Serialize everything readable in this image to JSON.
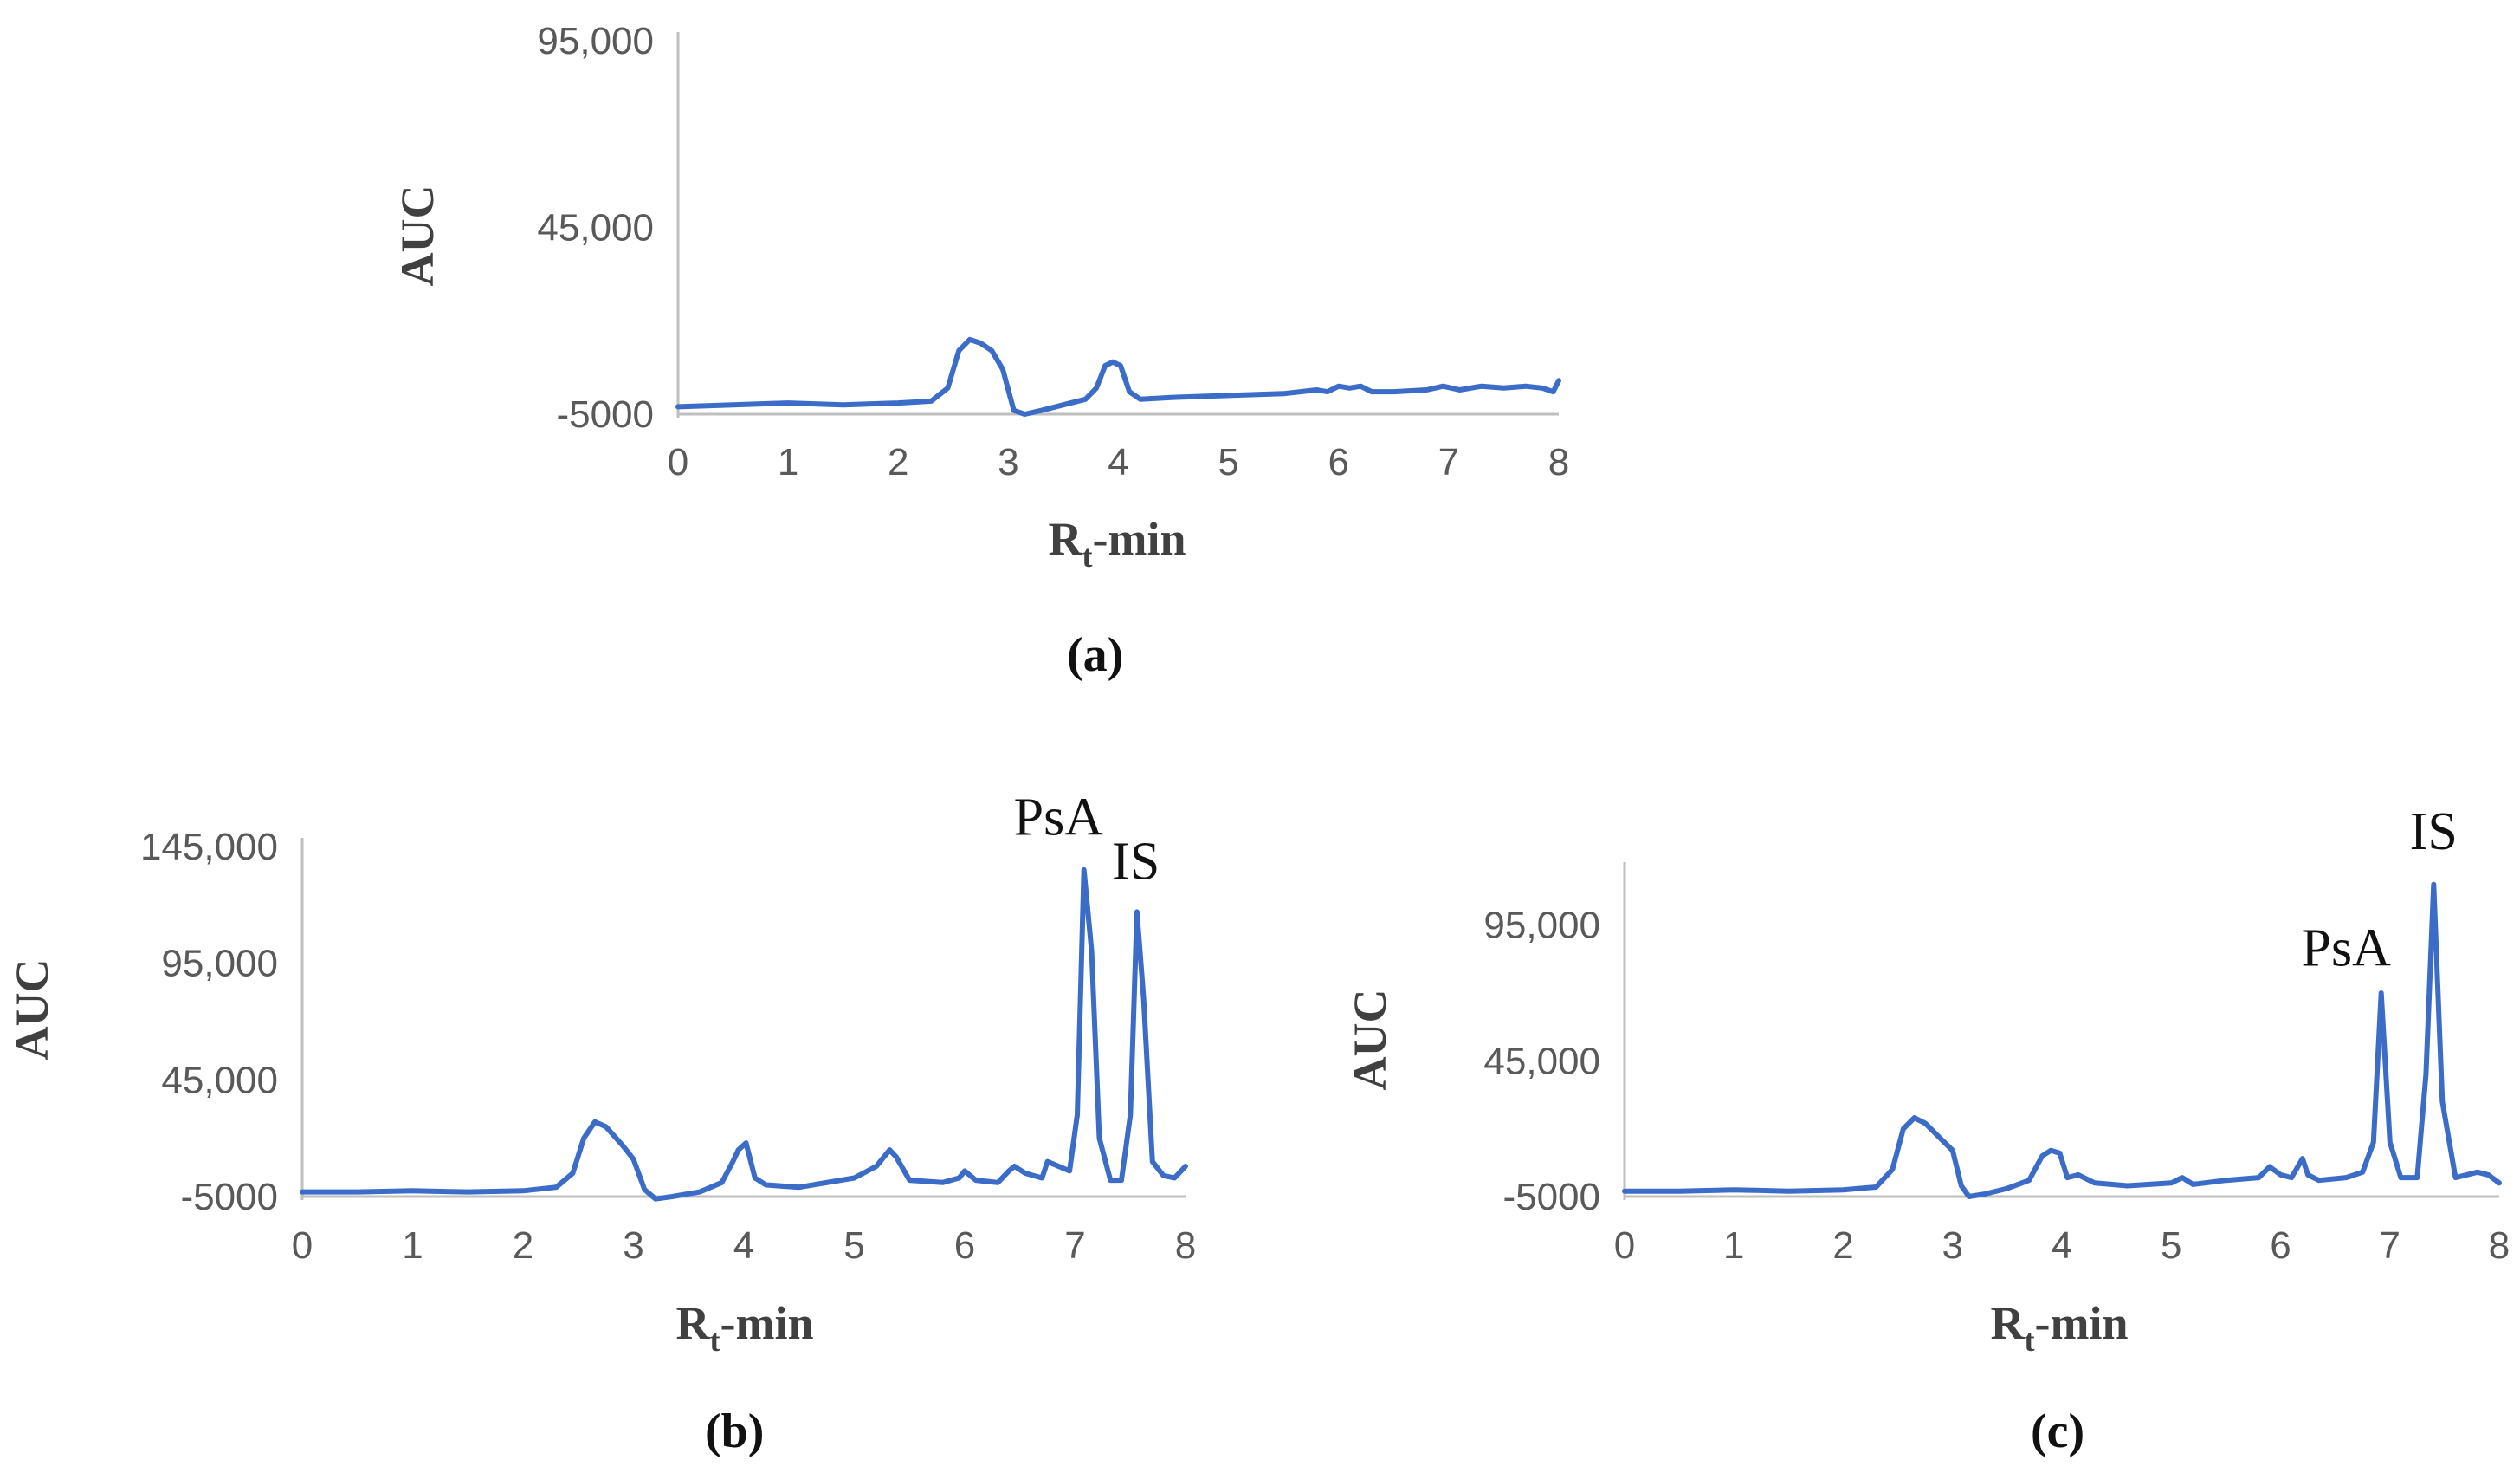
{
  "colors": {
    "line": "#3a6cc8",
    "axis": "#bfbfbf",
    "tick_text": "#595959"
  },
  "chart_data": [
    {
      "type": "line",
      "caption": "(a)",
      "xlabel_main": "R",
      "xlabel_sub": "t",
      "xlabel_rest": "-min",
      "ylabel": "AUC",
      "xlim": [
        0,
        8
      ],
      "ylim": [
        -5000,
        95000
      ],
      "x_ticks": [
        "0",
        "1",
        "2",
        "3",
        "4",
        "5",
        "6",
        "7",
        "8"
      ],
      "y_ticks": [
        {
          "value": 95000,
          "label": "95,000"
        },
        {
          "value": 45000,
          "label": "45,000"
        },
        {
          "value": -5000,
          "label": "-5000"
        }
      ],
      "annotations": [],
      "series": [
        {
          "x": [
            0,
            0.5,
            1,
            1.5,
            2,
            2.3,
            2.45,
            2.55,
            2.65,
            2.75,
            2.85,
            2.95,
            3.05,
            3.15,
            3.3,
            3.5,
            3.7,
            3.8,
            3.88,
            3.95,
            4.02,
            4.1,
            4.2,
            4.5,
            5,
            5.5,
            5.8,
            5.9,
            6.0,
            6.1,
            6.2,
            6.3,
            6.5,
            6.8,
            6.95,
            7.1,
            7.3,
            7.5,
            7.7,
            7.85,
            7.95,
            8.0
          ],
          "y": [
            -3000,
            -2500,
            -2000,
            -2500,
            -2000,
            -1500,
            2000,
            12000,
            15000,
            14000,
            12000,
            7000,
            -4000,
            -5000,
            -4000,
            -2500,
            -1000,
            2000,
            8000,
            9000,
            8000,
            1000,
            -1000,
            -500,
            0,
            500,
            1500,
            1000,
            2500,
            2000,
            2500,
            1000,
            1000,
            1500,
            2500,
            1500,
            2500,
            2000,
            2500,
            2000,
            1000,
            4000
          ]
        }
      ]
    },
    {
      "type": "line",
      "caption": "(b)",
      "xlabel_main": "R",
      "xlabel_sub": "t",
      "xlabel_rest": "-min",
      "ylabel": "AUC",
      "xlim": [
        0,
        8
      ],
      "ylim": [
        -5000,
        145000
      ],
      "x_ticks": [
        "0",
        "1",
        "2",
        "3",
        "4",
        "5",
        "6",
        "7",
        "8"
      ],
      "y_ticks": [
        {
          "value": 145000,
          "label": "145,000"
        },
        {
          "value": 95000,
          "label": "95,000"
        },
        {
          "value": 45000,
          "label": "45,000"
        },
        {
          "value": -5000,
          "label": "-5000"
        }
      ],
      "annotations": [
        {
          "label": "PsA",
          "x": 6.85,
          "y": 150000
        },
        {
          "label": "IS",
          "x": 7.55,
          "y": 131000
        }
      ],
      "series": [
        {
          "x": [
            0,
            0.5,
            1,
            1.5,
            2,
            2.3,
            2.45,
            2.55,
            2.65,
            2.75,
            2.9,
            3.0,
            3.1,
            3.2,
            3.35,
            3.6,
            3.8,
            3.9,
            3.95,
            4.02,
            4.1,
            4.2,
            4.5,
            5.0,
            5.2,
            5.32,
            5.38,
            5.5,
            5.8,
            5.95,
            6.0,
            6.1,
            6.3,
            6.4,
            6.45,
            6.55,
            6.7,
            6.75,
            6.85,
            6.95,
            7.02,
            7.08,
            7.15,
            7.22,
            7.32,
            7.42,
            7.5,
            7.56,
            7.62,
            7.7,
            7.8,
            7.9,
            8.0
          ],
          "y": [
            -3000,
            -3000,
            -2500,
            -3000,
            -2500,
            -1000,
            5000,
            20000,
            27000,
            25000,
            17000,
            11000,
            -2000,
            -6000,
            -5000,
            -3000,
            1000,
            10000,
            15000,
            18000,
            3000,
            0,
            -1000,
            3000,
            8000,
            15000,
            12000,
            2000,
            1000,
            3000,
            6000,
            2000,
            1000,
            6000,
            8000,
            5000,
            3000,
            10000,
            8000,
            6000,
            30000,
            135000,
            100000,
            20000,
            2000,
            2000,
            30000,
            117000,
            80000,
            10000,
            4000,
            3000,
            8000
          ]
        }
      ]
    },
    {
      "type": "line",
      "caption": "(c)",
      "xlabel_main": "R",
      "xlabel_sub": "t",
      "xlabel_rest": "-min",
      "ylabel": "AUC",
      "xlim": [
        0,
        8
      ],
      "ylim": [
        -5000,
        115000
      ],
      "x_ticks": [
        "0",
        "1",
        "2",
        "3",
        "4",
        "5",
        "6",
        "7",
        "8"
      ],
      "y_ticks": [
        {
          "value": 95000,
          "label": "95,000"
        },
        {
          "value": 45000,
          "label": "45,000"
        },
        {
          "value": -5000,
          "label": "-5000"
        }
      ],
      "annotations": [
        {
          "label": "PsA",
          "x": 6.6,
          "y": 80000
        },
        {
          "label": "IS",
          "x": 7.4,
          "y": 123000
        }
      ],
      "series": [
        {
          "x": [
            0,
            0.5,
            1,
            1.5,
            2,
            2.3,
            2.45,
            2.55,
            2.65,
            2.75,
            2.9,
            3.0,
            3.08,
            3.15,
            3.3,
            3.5,
            3.7,
            3.82,
            3.9,
            3.98,
            4.05,
            4.15,
            4.3,
            4.6,
            5.0,
            5.1,
            5.2,
            5.5,
            5.8,
            5.9,
            6.0,
            6.1,
            6.2,
            6.25,
            6.35,
            6.6,
            6.75,
            6.85,
            6.92,
            7.0,
            7.1,
            7.25,
            7.33,
            7.4,
            7.48,
            7.6,
            7.8,
            7.9,
            8.0
          ],
          "y": [
            -3000,
            -3000,
            -2500,
            -3000,
            -2500,
            -1500,
            5000,
            20000,
            24000,
            22000,
            16000,
            12000,
            -1000,
            -5000,
            -4000,
            -2000,
            1000,
            10000,
            12000,
            11000,
            2000,
            3000,
            0,
            -1000,
            0,
            2000,
            -500,
            1000,
            2000,
            6000,
            3000,
            2000,
            9000,
            3000,
            1000,
            2000,
            4000,
            15000,
            70000,
            15000,
            2000,
            2000,
            40000,
            110000,
            30000,
            2000,
            4000,
            3000,
            0
          ]
        }
      ]
    }
  ]
}
